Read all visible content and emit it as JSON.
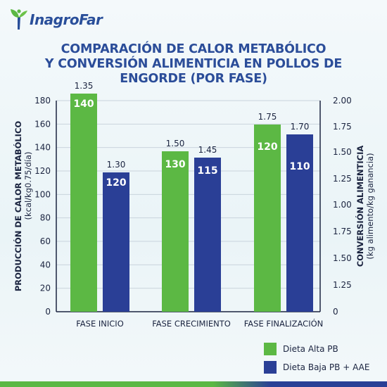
{
  "brand": {
    "name": "InagroFar"
  },
  "title_lines": [
    "COMPARACIÓN DE CALOR METABÓLICO",
    "Y CONVERSIÓN ALIMENTICIA EN POLLOS DE",
    "ENGORDE (POR FASE)"
  ],
  "colors": {
    "green": "#5cb844",
    "blue": "#2a3f96",
    "title": "#2b4d99"
  },
  "chart_data": {
    "type": "bar",
    "categories": [
      "FASE INICIO",
      "FASE CRECIMIENTO",
      "FASE FINALIZACIÓN"
    ],
    "series": [
      {
        "name": "Dieta Alta PB",
        "color": "#5cb844",
        "heat_values": [
          140,
          130,
          120
        ],
        "conversion_values": [
          1.35,
          1.5,
          1.75
        ],
        "conversion_labels": [
          "1.35",
          "1.50",
          "1.75"
        ]
      },
      {
        "name": "Dieta Baja PB + AAE",
        "color": "#2a3f96",
        "heat_values": [
          120,
          115,
          110
        ],
        "conversion_values": [
          1.3,
          1.45,
          1.7
        ],
        "conversion_labels": [
          "1.30",
          "1.45",
          "1.70"
        ]
      }
    ],
    "left_axis": {
      "label_line1": "PRODUCCIÓN DE CALOR METABÓLICO",
      "label_line2": "(kcal/kg0.75/día)",
      "ylim": [
        0,
        180
      ],
      "ticks": [
        "0",
        "20",
        "40",
        "60",
        "80",
        "100",
        "120",
        "140",
        "160",
        "180"
      ]
    },
    "right_axis": {
      "label_line1": "CONVERSIÓN ALIMENTICIA",
      "label_line2": "(kg alimento/kg ganancia)",
      "ylim": [
        0,
        2.0
      ],
      "ticks": [
        "0",
        "1.00",
        "1.25",
        "1.50",
        "1.75",
        "2.00"
      ]
    },
    "grid": true,
    "legend_position": "bottom-right"
  }
}
